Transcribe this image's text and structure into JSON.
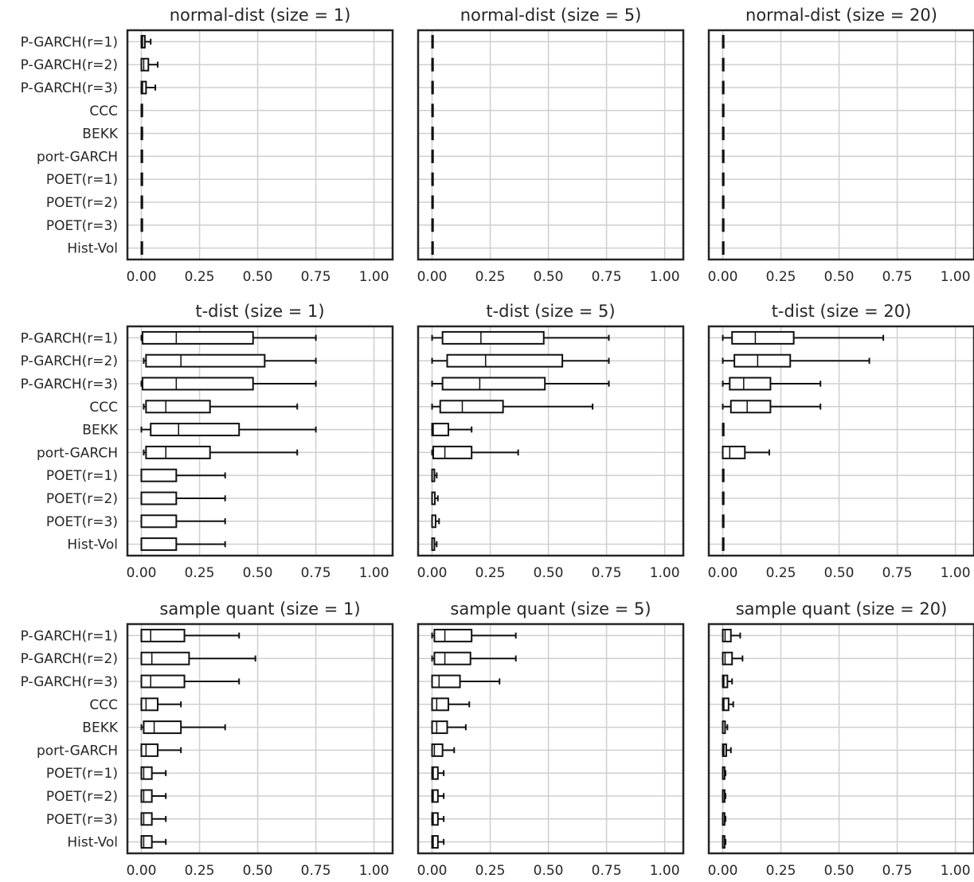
{
  "chart_data": [
    {
      "type": "box",
      "title": "normal-dist (size = 1)",
      "categories": [
        "P-GARCH(r=1)",
        "P-GARCH(r=2)",
        "P-GARCH(r=3)",
        "CCC",
        "BEKK",
        "port-GARCH",
        "POET(r=1)",
        "POET(r=2)",
        "POET(r=3)",
        "Hist-Vol"
      ],
      "boxes": [
        {
          "min": 0.0,
          "q1": 0.0,
          "median": 0.005,
          "q3": 0.015,
          "max": 0.04
        },
        {
          "min": 0.0,
          "q1": 0.0,
          "median": 0.01,
          "q3": 0.03,
          "max": 0.07
        },
        {
          "min": 0.0,
          "q1": 0.0,
          "median": 0.005,
          "q3": 0.02,
          "max": 0.06
        },
        {
          "min": 0.0,
          "q1": 0.0,
          "median": 0.0,
          "q3": 0.003,
          "max": 0.003
        },
        {
          "min": 0.0,
          "q1": 0.0,
          "median": 0.0,
          "q3": 0.004,
          "max": 0.004
        },
        {
          "min": 0.0,
          "q1": 0.0,
          "median": 0.0,
          "q3": 0.003,
          "max": 0.003
        },
        {
          "min": 0.0,
          "q1": 0.0,
          "median": 0.0,
          "q3": 0.003,
          "max": 0.003
        },
        {
          "min": 0.0,
          "q1": 0.0,
          "median": 0.0,
          "q3": 0.003,
          "max": 0.003
        },
        {
          "min": 0.0,
          "q1": 0.0,
          "median": 0.0,
          "q3": 0.003,
          "max": 0.003
        },
        {
          "min": 0.0,
          "q1": 0.0,
          "median": 0.0,
          "q3": 0.003,
          "max": 0.003
        }
      ],
      "xlim": [
        -0.06,
        1.08
      ],
      "xticks": [
        "0.00",
        "0.25",
        "0.50",
        "0.75",
        "1.00"
      ],
      "show_yticklabels": true
    },
    {
      "type": "box",
      "title": "normal-dist (size = 5)",
      "categories": [
        "P-GARCH(r=1)",
        "P-GARCH(r=2)",
        "P-GARCH(r=3)",
        "CCC",
        "BEKK",
        "port-GARCH",
        "POET(r=1)",
        "POET(r=2)",
        "POET(r=3)",
        "Hist-Vol"
      ],
      "boxes": [
        {
          "min": 0.0,
          "q1": 0.0,
          "median": 0.0,
          "q3": 0.002,
          "max": 0.002
        },
        {
          "min": 0.0,
          "q1": 0.0,
          "median": 0.0,
          "q3": 0.002,
          "max": 0.002
        },
        {
          "min": 0.0,
          "q1": 0.0,
          "median": 0.0,
          "q3": 0.002,
          "max": 0.002
        },
        {
          "min": 0.0,
          "q1": 0.0,
          "median": 0.0,
          "q3": 0.002,
          "max": 0.002
        },
        {
          "min": 0.0,
          "q1": 0.0,
          "median": 0.0,
          "q3": 0.002,
          "max": 0.002
        },
        {
          "min": 0.0,
          "q1": 0.0,
          "median": 0.0,
          "q3": 0.002,
          "max": 0.002
        },
        {
          "min": 0.0,
          "q1": 0.0,
          "median": 0.0,
          "q3": 0.002,
          "max": 0.002
        },
        {
          "min": 0.0,
          "q1": 0.0,
          "median": 0.0,
          "q3": 0.002,
          "max": 0.002
        },
        {
          "min": 0.0,
          "q1": 0.0,
          "median": 0.0,
          "q3": 0.002,
          "max": 0.002
        },
        {
          "min": 0.0,
          "q1": 0.0,
          "median": 0.0,
          "q3": 0.002,
          "max": 0.002
        }
      ],
      "xlim": [
        -0.06,
        1.08
      ],
      "xticks": [
        "0.00",
        "0.25",
        "0.50",
        "0.75",
        "1.00"
      ],
      "show_yticklabels": false
    },
    {
      "type": "box",
      "title": "normal-dist (size = 20)",
      "categories": [
        "P-GARCH(r=1)",
        "P-GARCH(r=2)",
        "P-GARCH(r=3)",
        "CCC",
        "BEKK",
        "port-GARCH",
        "POET(r=1)",
        "POET(r=2)",
        "POET(r=3)",
        "Hist-Vol"
      ],
      "boxes": [
        {
          "min": 0.0,
          "q1": 0.0,
          "median": 0.0,
          "q3": 0.002,
          "max": 0.002
        },
        {
          "min": 0.0,
          "q1": 0.0,
          "median": 0.0,
          "q3": 0.002,
          "max": 0.002
        },
        {
          "min": 0.0,
          "q1": 0.0,
          "median": 0.0,
          "q3": 0.002,
          "max": 0.002
        },
        {
          "min": 0.0,
          "q1": 0.0,
          "median": 0.0,
          "q3": 0.002,
          "max": 0.002
        },
        {
          "min": 0.0,
          "q1": 0.0,
          "median": 0.0,
          "q3": 0.002,
          "max": 0.002
        },
        {
          "min": 0.0,
          "q1": 0.0,
          "median": 0.0,
          "q3": 0.002,
          "max": 0.002
        },
        {
          "min": 0.0,
          "q1": 0.0,
          "median": 0.0,
          "q3": 0.002,
          "max": 0.002
        },
        {
          "min": 0.0,
          "q1": 0.0,
          "median": 0.0,
          "q3": 0.002,
          "max": 0.002
        },
        {
          "min": 0.0,
          "q1": 0.0,
          "median": 0.0,
          "q3": 0.002,
          "max": 0.002
        },
        {
          "min": 0.0,
          "q1": 0.0,
          "median": 0.0,
          "q3": 0.002,
          "max": 0.002
        }
      ],
      "xlim": [
        -0.06,
        1.08
      ],
      "xticks": [
        "0.00",
        "0.25",
        "0.50",
        "0.75",
        "1.00"
      ],
      "show_yticklabels": false
    },
    {
      "type": "box",
      "title": "t-dist (size = 1)",
      "categories": [
        "P-GARCH(r=1)",
        "P-GARCH(r=2)",
        "P-GARCH(r=3)",
        "CCC",
        "BEKK",
        "port-GARCH",
        "POET(r=1)",
        "POET(r=2)",
        "POET(r=3)",
        "Hist-Vol"
      ],
      "boxes": [
        {
          "min": 0.0,
          "q1": 0.005,
          "median": 0.15,
          "q3": 0.48,
          "max": 0.75
        },
        {
          "min": 0.01,
          "q1": 0.02,
          "median": 0.17,
          "q3": 0.53,
          "max": 0.75
        },
        {
          "min": 0.0,
          "q1": 0.005,
          "median": 0.15,
          "q3": 0.48,
          "max": 0.75
        },
        {
          "min": 0.01,
          "q1": 0.02,
          "median": 0.105,
          "q3": 0.295,
          "max": 0.67
        },
        {
          "min": 0.0,
          "q1": 0.04,
          "median": 0.16,
          "q3": 0.42,
          "max": 0.75
        },
        {
          "min": 0.01,
          "q1": 0.02,
          "median": 0.105,
          "q3": 0.295,
          "max": 0.67
        },
        {
          "min": 0.0,
          "q1": 0.0,
          "median": 0.0,
          "q3": 0.15,
          "max": 0.36
        },
        {
          "min": 0.0,
          "q1": 0.0,
          "median": 0.0,
          "q3": 0.15,
          "max": 0.36
        },
        {
          "min": 0.0,
          "q1": 0.0,
          "median": 0.0,
          "q3": 0.15,
          "max": 0.36
        },
        {
          "min": 0.0,
          "q1": 0.0,
          "median": 0.0,
          "q3": 0.15,
          "max": 0.36
        }
      ],
      "xlim": [
        -0.06,
        1.08
      ],
      "xticks": [
        "0.00",
        "0.25",
        "0.50",
        "0.75",
        "1.00"
      ],
      "show_yticklabels": true
    },
    {
      "type": "box",
      "title": "t-dist (size = 5)",
      "categories": [
        "P-GARCH(r=1)",
        "P-GARCH(r=2)",
        "P-GARCH(r=3)",
        "CCC",
        "BEKK",
        "port-GARCH",
        "POET(r=1)",
        "POET(r=2)",
        "POET(r=3)",
        "Hist-Vol"
      ],
      "boxes": [
        {
          "min": 0.0,
          "q1": 0.045,
          "median": 0.21,
          "q3": 0.48,
          "max": 0.76
        },
        {
          "min": 0.0,
          "q1": 0.065,
          "median": 0.23,
          "q3": 0.56,
          "max": 0.76
        },
        {
          "min": 0.0,
          "q1": 0.045,
          "median": 0.205,
          "q3": 0.485,
          "max": 0.76
        },
        {
          "min": 0.0,
          "q1": 0.035,
          "median": 0.13,
          "q3": 0.305,
          "max": 0.69
        },
        {
          "min": 0.0,
          "q1": 0.0,
          "median": 0.005,
          "q3": 0.07,
          "max": 0.17
        },
        {
          "min": 0.0,
          "q1": 0.005,
          "median": 0.055,
          "q3": 0.17,
          "max": 0.37
        },
        {
          "min": 0.0,
          "q1": 0.0,
          "median": 0.0,
          "q3": 0.01,
          "max": 0.02
        },
        {
          "min": 0.0,
          "q1": 0.0,
          "median": 0.0,
          "q3": 0.012,
          "max": 0.025
        },
        {
          "min": 0.0,
          "q1": 0.0,
          "median": 0.0,
          "q3": 0.015,
          "max": 0.03
        },
        {
          "min": 0.0,
          "q1": 0.0,
          "median": 0.0,
          "q3": 0.01,
          "max": 0.02
        }
      ],
      "xlim": [
        -0.06,
        1.08
      ],
      "xticks": [
        "0.00",
        "0.25",
        "0.50",
        "0.75",
        "1.00"
      ],
      "show_yticklabels": false
    },
    {
      "type": "box",
      "title": "t-dist (size = 20)",
      "categories": [
        "P-GARCH(r=1)",
        "P-GARCH(r=2)",
        "P-GARCH(r=3)",
        "CCC",
        "BEKK",
        "port-GARCH",
        "POET(r=1)",
        "POET(r=2)",
        "POET(r=3)",
        "Hist-Vol"
      ],
      "boxes": [
        {
          "min": 0.0,
          "q1": 0.04,
          "median": 0.14,
          "q3": 0.305,
          "max": 0.69
        },
        {
          "min": 0.0,
          "q1": 0.05,
          "median": 0.15,
          "q3": 0.29,
          "max": 0.63
        },
        {
          "min": 0.0,
          "q1": 0.03,
          "median": 0.09,
          "q3": 0.205,
          "max": 0.42
        },
        {
          "min": 0.0,
          "q1": 0.035,
          "median": 0.105,
          "q3": 0.205,
          "max": 0.42
        },
        {
          "min": 0.0,
          "q1": 0.0,
          "median": 0.0,
          "q3": 0.002,
          "max": 0.002
        },
        {
          "min": 0.0,
          "q1": 0.0,
          "median": 0.03,
          "q3": 0.095,
          "max": 0.2
        },
        {
          "min": 0.0,
          "q1": 0.0,
          "median": 0.0,
          "q3": 0.002,
          "max": 0.002
        },
        {
          "min": 0.0,
          "q1": 0.0,
          "median": 0.0,
          "q3": 0.002,
          "max": 0.002
        },
        {
          "min": 0.0,
          "q1": 0.0,
          "median": 0.0,
          "q3": 0.002,
          "max": 0.002
        },
        {
          "min": 0.0,
          "q1": 0.0,
          "median": 0.0,
          "q3": 0.002,
          "max": 0.002
        }
      ],
      "xlim": [
        -0.06,
        1.08
      ],
      "xticks": [
        "0.00",
        "0.25",
        "0.50",
        "0.75",
        "1.00"
      ],
      "show_yticklabels": false
    },
    {
      "type": "box",
      "title": "sample quant (size = 1)",
      "categories": [
        "P-GARCH(r=1)",
        "P-GARCH(r=2)",
        "P-GARCH(r=3)",
        "CCC",
        "BEKK",
        "port-GARCH",
        "POET(r=1)",
        "POET(r=2)",
        "POET(r=3)",
        "Hist-Vol"
      ],
      "boxes": [
        {
          "min": 0.0,
          "q1": 0.0,
          "median": 0.04,
          "q3": 0.185,
          "max": 0.42
        },
        {
          "min": 0.0,
          "q1": 0.0,
          "median": 0.045,
          "q3": 0.205,
          "max": 0.49
        },
        {
          "min": 0.0,
          "q1": 0.0,
          "median": 0.04,
          "q3": 0.185,
          "max": 0.42
        },
        {
          "min": 0.0,
          "q1": 0.0,
          "median": 0.02,
          "q3": 0.07,
          "max": 0.17
        },
        {
          "min": 0.0,
          "q1": 0.01,
          "median": 0.055,
          "q3": 0.17,
          "max": 0.36
        },
        {
          "min": 0.0,
          "q1": 0.0,
          "median": 0.02,
          "q3": 0.07,
          "max": 0.17
        },
        {
          "min": 0.0,
          "q1": 0.0,
          "median": 0.01,
          "q3": 0.045,
          "max": 0.105
        },
        {
          "min": 0.0,
          "q1": 0.0,
          "median": 0.01,
          "q3": 0.045,
          "max": 0.105
        },
        {
          "min": 0.0,
          "q1": 0.0,
          "median": 0.01,
          "q3": 0.045,
          "max": 0.105
        },
        {
          "min": 0.0,
          "q1": 0.0,
          "median": 0.01,
          "q3": 0.045,
          "max": 0.105
        }
      ],
      "xlim": [
        -0.06,
        1.08
      ],
      "xticks": [
        "0.00",
        "0.25",
        "0.50",
        "0.75",
        "1.00"
      ],
      "show_yticklabels": true
    },
    {
      "type": "box",
      "title": "sample quant (size = 5)",
      "categories": [
        "P-GARCH(r=1)",
        "P-GARCH(r=2)",
        "P-GARCH(r=3)",
        "CCC",
        "BEKK",
        "port-GARCH",
        "POET(r=1)",
        "POET(r=2)",
        "POET(r=3)",
        "Hist-Vol"
      ],
      "boxes": [
        {
          "min": 0.0,
          "q1": 0.01,
          "median": 0.055,
          "q3": 0.17,
          "max": 0.36
        },
        {
          "min": 0.0,
          "q1": 0.01,
          "median": 0.055,
          "q3": 0.165,
          "max": 0.36
        },
        {
          "min": 0.0,
          "q1": 0.0,
          "median": 0.03,
          "q3": 0.12,
          "max": 0.29
        },
        {
          "min": 0.0,
          "q1": 0.0,
          "median": 0.02,
          "q3": 0.07,
          "max": 0.16
        },
        {
          "min": 0.0,
          "q1": 0.0,
          "median": 0.02,
          "q3": 0.065,
          "max": 0.145
        },
        {
          "min": 0.0,
          "q1": 0.0,
          "median": 0.01,
          "q3": 0.045,
          "max": 0.095
        },
        {
          "min": 0.0,
          "q1": 0.0,
          "median": 0.005,
          "q3": 0.025,
          "max": 0.05
        },
        {
          "min": 0.0,
          "q1": 0.0,
          "median": 0.005,
          "q3": 0.025,
          "max": 0.05
        },
        {
          "min": 0.0,
          "q1": 0.0,
          "median": 0.005,
          "q3": 0.025,
          "max": 0.05
        },
        {
          "min": 0.0,
          "q1": 0.0,
          "median": 0.005,
          "q3": 0.025,
          "max": 0.05
        }
      ],
      "xlim": [
        -0.06,
        1.08
      ],
      "xticks": [
        "0.00",
        "0.25",
        "0.50",
        "0.75",
        "1.00"
      ],
      "show_yticklabels": false
    },
    {
      "type": "box",
      "title": "sample quant (size = 20)",
      "categories": [
        "P-GARCH(r=1)",
        "P-GARCH(r=2)",
        "P-GARCH(r=3)",
        "CCC",
        "BEKK",
        "port-GARCH",
        "POET(r=1)",
        "POET(r=2)",
        "POET(r=3)",
        "Hist-Vol"
      ],
      "boxes": [
        {
          "min": 0.0,
          "q1": 0.0,
          "median": 0.01,
          "q3": 0.035,
          "max": 0.075
        },
        {
          "min": 0.0,
          "q1": 0.0,
          "median": 0.01,
          "q3": 0.04,
          "max": 0.085
        },
        {
          "min": 0.0,
          "q1": 0.0,
          "median": 0.005,
          "q3": 0.02,
          "max": 0.04
        },
        {
          "min": 0.0,
          "q1": 0.0,
          "median": 0.005,
          "q3": 0.025,
          "max": 0.045
        },
        {
          "min": 0.0,
          "q1": 0.0,
          "median": 0.0,
          "q3": 0.01,
          "max": 0.02
        },
        {
          "min": 0.0,
          "q1": 0.0,
          "median": 0.005,
          "q3": 0.015,
          "max": 0.035
        },
        {
          "min": 0.0,
          "q1": 0.0,
          "median": 0.0,
          "q3": 0.008,
          "max": 0.012
        },
        {
          "min": 0.0,
          "q1": 0.0,
          "median": 0.0,
          "q3": 0.008,
          "max": 0.012
        },
        {
          "min": 0.0,
          "q1": 0.0,
          "median": 0.0,
          "q3": 0.008,
          "max": 0.012
        },
        {
          "min": 0.0,
          "q1": 0.0,
          "median": 0.0,
          "q3": 0.008,
          "max": 0.012
        }
      ],
      "xlim": [
        -0.06,
        1.08
      ],
      "xticks": [
        "0.00",
        "0.25",
        "0.50",
        "0.75",
        "1.00"
      ],
      "show_yticklabels": false
    }
  ]
}
